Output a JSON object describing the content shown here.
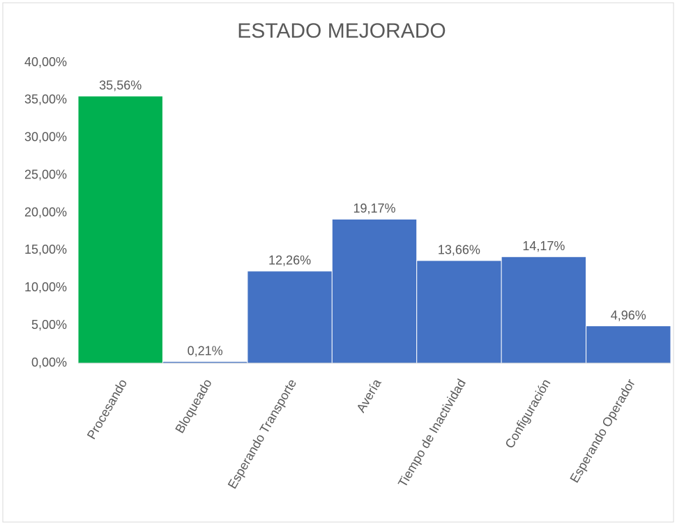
{
  "chart_data": {
    "type": "bar",
    "title": "ESTADO MEJORADO",
    "categories": [
      "Procesando",
      "Bloqueado",
      "Esperando Transporte",
      "Avería",
      "Tiempo de Inactividad",
      "Configuración",
      "Esperando Operador"
    ],
    "values": [
      35.56,
      0.21,
      12.26,
      19.17,
      13.66,
      14.17,
      4.96
    ],
    "value_labels": [
      "35,56%",
      "0,21%",
      "12,26%",
      "19,17%",
      "13,66%",
      "14,17%",
      "4,96%"
    ],
    "colors": [
      "#00b050",
      "#4472c4",
      "#4472c4",
      "#4472c4",
      "#4472c4",
      "#4472c4",
      "#4472c4"
    ],
    "ylim": [
      0,
      40
    ],
    "yticks": [
      {
        "value": 0,
        "label": "0,00%"
      },
      {
        "value": 5,
        "label": "5,00%"
      },
      {
        "value": 10,
        "label": "10,00%"
      },
      {
        "value": 15,
        "label": "15,00%"
      },
      {
        "value": 20,
        "label": "20,00%"
      },
      {
        "value": 25,
        "label": "25,00%"
      },
      {
        "value": 30,
        "label": "30,00%"
      },
      {
        "value": 35,
        "label": "35,00%"
      },
      {
        "value": 40,
        "label": "40,00%"
      }
    ],
    "grid": false
  }
}
